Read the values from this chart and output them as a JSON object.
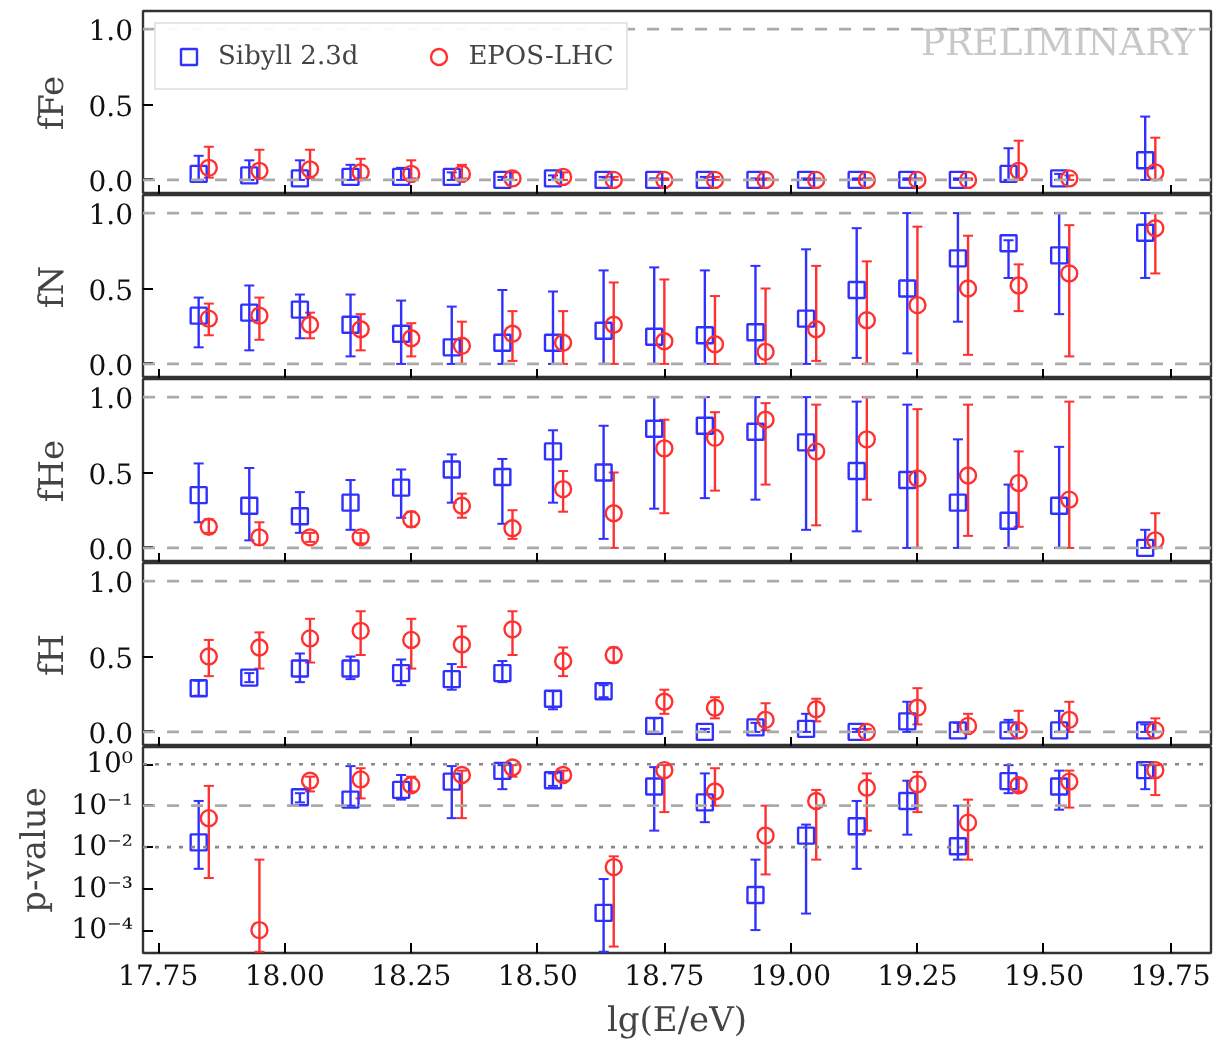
{
  "chart_data": [
    {
      "type": "scatter",
      "ylabel": "fFe",
      "xlim": [
        17.72,
        19.83
      ],
      "xticks": [
        17.75,
        18,
        18.25,
        18.5,
        18.75,
        19,
        19.25,
        19.5,
        19.75
      ],
      "ylim": [
        -0.1,
        1.12
      ],
      "yticks": [
        {
          "value": 0,
          "label": "0.0"
        },
        {
          "value": 0.5,
          "label": "0.5"
        },
        {
          "value": 1,
          "label": "1.0"
        }
      ],
      "tick_labels": "y",
      "legend": "top left",
      "annotations": [
        "PRELIMINARY"
      ],
      "ref_lines": [
        {
          "axis": "y",
          "value": 0,
          "color": "#aaaaaa",
          "line_style": "dashed"
        },
        {
          "axis": "y",
          "value": 1,
          "color": "#aaaaaa",
          "line_style": "dashed"
        }
      ],
      "series": [
        {
          "name": "Sibyll 2.3d",
          "color": "#3030ff",
          "marker": "square",
          "x": [
            17.83,
            17.93,
            18.03,
            18.13,
            18.23,
            18.33,
            18.43,
            18.53,
            18.63,
            18.73,
            18.83,
            18.93,
            19.03,
            19.13,
            19.23,
            19.33,
            19.43,
            19.53,
            19.7
          ],
          "values": [
            0.04,
            0.03,
            0.01,
            0.02,
            0.02,
            0.02,
            0.0,
            0.01,
            0.0,
            0.0,
            0.0,
            0.0,
            0.0,
            0.0,
            0.0,
            0.0,
            0.04,
            0.01,
            0.13
          ],
          "errors": [
            [
              0,
              0.16
            ],
            [
              0,
              0.13
            ],
            [
              0,
              0.13
            ],
            [
              0,
              0.1
            ],
            [
              0,
              0.08
            ],
            [
              0,
              0.05
            ],
            [
              0,
              0.02
            ],
            [
              0,
              0.03
            ],
            [
              0,
              0.02
            ],
            [
              0,
              0.01
            ],
            [
              0,
              0.02
            ],
            [
              0,
              0.01
            ],
            [
              0,
              0.01
            ],
            [
              0,
              0.01
            ],
            [
              0,
              0.01
            ],
            [
              0,
              0.01
            ],
            [
              0,
              0.21
            ],
            [
              0,
              0.04
            ],
            [
              0,
              0.42
            ]
          ]
        },
        {
          "name": "EPOS-LHC",
          "color": "#ff3030",
          "marker": "circle",
          "x": [
            17.85,
            17.95,
            18.05,
            18.15,
            18.25,
            18.35,
            18.45,
            18.55,
            18.65,
            18.75,
            18.85,
            18.95,
            19.05,
            19.15,
            19.25,
            19.35,
            19.45,
            19.55,
            19.72
          ],
          "values": [
            0.08,
            0.06,
            0.07,
            0.05,
            0.04,
            0.04,
            0.01,
            0.02,
            0.0,
            0.0,
            0.0,
            0.0,
            0.0,
            0.0,
            0.0,
            0.0,
            0.06,
            0.01,
            0.05
          ],
          "errors": [
            [
              0.015,
              0.22
            ],
            [
              0.01,
              0.2
            ],
            [
              0.01,
              0.2
            ],
            [
              0.01,
              0.14
            ],
            [
              0.01,
              0.13
            ],
            [
              0.01,
              0.1
            ],
            [
              0,
              0.05
            ],
            [
              0,
              0.05
            ],
            [
              0,
              0.02
            ],
            [
              0,
              0.01
            ],
            [
              0,
              0.02
            ],
            [
              0,
              0.01
            ],
            [
              0,
              0.01
            ],
            [
              0,
              0.01
            ],
            [
              0,
              0.01
            ],
            [
              0,
              0.01
            ],
            [
              0,
              0.26
            ],
            [
              0,
              0.03
            ],
            [
              0,
              0.28
            ]
          ]
        }
      ]
    },
    {
      "type": "scatter",
      "ylabel": "fN",
      "xlim": [
        17.72,
        19.83
      ],
      "xticks": [
        17.75,
        18,
        18.25,
        18.5,
        18.75,
        19,
        19.25,
        19.5,
        19.75
      ],
      "ylim": [
        -0.1,
        1.12
      ],
      "yticks": [
        {
          "value": 0,
          "label": "0.0"
        },
        {
          "value": 0.5,
          "label": "0.5"
        },
        {
          "value": 1,
          "label": "1.0"
        }
      ],
      "tick_labels": "y",
      "ref_lines": [
        {
          "axis": "y",
          "value": 0,
          "color": "#aaaaaa",
          "line_style": "dashed"
        },
        {
          "axis": "y",
          "value": 1,
          "color": "#aaaaaa",
          "line_style": "dashed"
        }
      ],
      "series": [
        {
          "color": "#3030ff",
          "marker": "square",
          "x": [
            17.83,
            17.93,
            18.03,
            18.13,
            18.23,
            18.33,
            18.43,
            18.53,
            18.63,
            18.73,
            18.83,
            18.93,
            19.03,
            19.13,
            19.23,
            19.33,
            19.43,
            19.53,
            19.7
          ],
          "values": [
            0.32,
            0.34,
            0.36,
            0.26,
            0.2,
            0.11,
            0.14,
            0.14,
            0.22,
            0.18,
            0.19,
            0.21,
            0.3,
            0.49,
            0.5,
            0.7,
            0.8,
            0.72,
            0.87
          ],
          "errors": [
            [
              0.11,
              0.44
            ],
            [
              0.09,
              0.52
            ],
            [
              0.17,
              0.46
            ],
            [
              0.05,
              0.46
            ],
            [
              0,
              0.42
            ],
            [
              0,
              0.38
            ],
            [
              0,
              0.49
            ],
            [
              0,
              0.48
            ],
            [
              0,
              0.62
            ],
            [
              0,
              0.64
            ],
            [
              0,
              0.62
            ],
            [
              0,
              0.65
            ],
            [
              0,
              0.76
            ],
            [
              0.04,
              0.9
            ],
            [
              0.07,
              1.0
            ],
            [
              0.28,
              1.0
            ],
            [
              0.57,
              0.82
            ],
            [
              0.33,
              1.0
            ],
            [
              0.57,
              1.0
            ]
          ]
        },
        {
          "color": "#ff3030",
          "marker": "circle",
          "x": [
            17.85,
            17.95,
            18.05,
            18.15,
            18.25,
            18.35,
            18.45,
            18.55,
            18.65,
            18.75,
            18.85,
            18.95,
            19.05,
            19.15,
            19.25,
            19.35,
            19.45,
            19.55,
            19.72
          ],
          "values": [
            0.3,
            0.32,
            0.26,
            0.23,
            0.17,
            0.12,
            0.2,
            0.14,
            0.26,
            0.15,
            0.13,
            0.08,
            0.23,
            0.29,
            0.39,
            0.5,
            0.52,
            0.6,
            0.9
          ],
          "errors": [
            [
              0.19,
              0.4
            ],
            [
              0.16,
              0.44
            ],
            [
              0.17,
              0.34
            ],
            [
              0.09,
              0.33
            ],
            [
              0.05,
              0.27
            ],
            [
              0,
              0.28
            ],
            [
              0.02,
              0.35
            ],
            [
              0,
              0.35
            ],
            [
              0,
              0.54
            ],
            [
              0,
              0.56
            ],
            [
              0,
              0.45
            ],
            [
              0,
              0.5
            ],
            [
              0.02,
              0.65
            ],
            [
              0,
              0.68
            ],
            [
              0,
              0.91
            ],
            [
              0.06,
              0.85
            ],
            [
              0.35,
              0.66
            ],
            [
              0.05,
              0.92
            ],
            [
              0.6,
              1.0
            ]
          ]
        }
      ]
    },
    {
      "type": "scatter",
      "ylabel": "fHe",
      "xlim": [
        17.72,
        19.83
      ],
      "xticks": [
        17.75,
        18,
        18.25,
        18.5,
        18.75,
        19,
        19.25,
        19.5,
        19.75
      ],
      "ylim": [
        -0.1,
        1.12
      ],
      "yticks": [
        {
          "value": 0,
          "label": "0.0"
        },
        {
          "value": 0.5,
          "label": "0.5"
        },
        {
          "value": 1,
          "label": "1.0"
        }
      ],
      "tick_labels": "y",
      "ref_lines": [
        {
          "axis": "y",
          "value": 0,
          "color": "#aaaaaa",
          "line_style": "dashed"
        },
        {
          "axis": "y",
          "value": 1,
          "color": "#aaaaaa",
          "line_style": "dashed"
        }
      ],
      "series": [
        {
          "color": "#3030ff",
          "marker": "square",
          "x": [
            17.83,
            17.93,
            18.03,
            18.13,
            18.23,
            18.33,
            18.43,
            18.53,
            18.63,
            18.73,
            18.83,
            18.93,
            19.03,
            19.13,
            19.23,
            19.33,
            19.43,
            19.53,
            19.7
          ],
          "values": [
            0.35,
            0.28,
            0.21,
            0.3,
            0.4,
            0.52,
            0.47,
            0.64,
            0.5,
            0.79,
            0.81,
            0.77,
            0.7,
            0.51,
            0.45,
            0.3,
            0.18,
            0.28,
            0.0
          ],
          "errors": [
            [
              0.17,
              0.56
            ],
            [
              0.05,
              0.53
            ],
            [
              0.1,
              0.37
            ],
            [
              0.12,
              0.45
            ],
            [
              0.2,
              0.52
            ],
            [
              0.3,
              0.62
            ],
            [
              0.16,
              0.59
            ],
            [
              0.3,
              0.78
            ],
            [
              0.06,
              0.81
            ],
            [
              0.26,
              1.0
            ],
            [
              0.33,
              1.0
            ],
            [
              0.32,
              1.0
            ],
            [
              0.12,
              1.0
            ],
            [
              0.11,
              0.97
            ],
            [
              0,
              0.95
            ],
            [
              0,
              0.72
            ],
            [
              0,
              0.42
            ],
            [
              0,
              0.67
            ],
            [
              0,
              0.12
            ]
          ]
        },
        {
          "color": "#ff3030",
          "marker": "circle",
          "x": [
            17.85,
            17.95,
            18.05,
            18.15,
            18.25,
            18.35,
            18.45,
            18.55,
            18.65,
            18.75,
            18.85,
            18.95,
            19.05,
            19.15,
            19.25,
            19.35,
            19.45,
            19.55,
            19.72
          ],
          "values": [
            0.14,
            0.07,
            0.07,
            0.07,
            0.19,
            0.28,
            0.13,
            0.39,
            0.23,
            0.66,
            0.73,
            0.85,
            0.64,
            0.72,
            0.46,
            0.48,
            0.43,
            0.32,
            0.05
          ],
          "errors": [
            [
              0.1,
              0.19
            ],
            [
              0.02,
              0.17
            ],
            [
              0.04,
              0.1
            ],
            [
              0.03,
              0.1
            ],
            [
              0.14,
              0.24
            ],
            [
              0.2,
              0.36
            ],
            [
              0.06,
              0.25
            ],
            [
              0.24,
              0.51
            ],
            [
              0,
              0.5
            ],
            [
              0.23,
              0.85
            ],
            [
              0.38,
              0.9
            ],
            [
              0.42,
              0.96
            ],
            [
              0.15,
              0.95
            ],
            [
              0.32,
              1.0
            ],
            [
              0,
              0.92
            ],
            [
              0.08,
              0.95
            ],
            [
              0.14,
              0.64
            ],
            [
              0,
              0.97
            ],
            [
              0,
              0.23
            ]
          ]
        }
      ]
    },
    {
      "type": "scatter",
      "ylabel": "fH",
      "xlim": [
        17.72,
        19.83
      ],
      "xticks": [
        17.75,
        18,
        18.25,
        18.5,
        18.75,
        19,
        19.25,
        19.5,
        19.75
      ],
      "ylim": [
        -0.1,
        1.12
      ],
      "yticks": [
        {
          "value": 0,
          "label": "0.0"
        },
        {
          "value": 0.5,
          "label": "0.5"
        },
        {
          "value": 1,
          "label": "1.0"
        }
      ],
      "tick_labels": "y",
      "ref_lines": [
        {
          "axis": "y",
          "value": 0,
          "color": "#aaaaaa",
          "line_style": "dashed"
        },
        {
          "axis": "y",
          "value": 1,
          "color": "#aaaaaa",
          "line_style": "dashed"
        }
      ],
      "series": [
        {
          "color": "#3030ff",
          "marker": "square",
          "x": [
            17.83,
            17.93,
            18.03,
            18.13,
            18.23,
            18.33,
            18.43,
            18.53,
            18.63,
            18.73,
            18.83,
            18.93,
            19.03,
            19.13,
            19.23,
            19.33,
            19.43,
            19.53,
            19.7
          ],
          "values": [
            0.29,
            0.36,
            0.42,
            0.42,
            0.39,
            0.35,
            0.39,
            0.22,
            0.27,
            0.04,
            0.0,
            0.03,
            0.02,
            0.0,
            0.07,
            0.01,
            0.01,
            0.01,
            0.01
          ],
          "errors": [
            [
              0.24,
              0.34
            ],
            [
              0.33,
              0.39
            ],
            [
              0.33,
              0.52
            ],
            [
              0.35,
              0.5
            ],
            [
              0.31,
              0.48
            ],
            [
              0.28,
              0.45
            ],
            [
              0.33,
              0.47
            ],
            [
              0.15,
              0.27
            ],
            [
              0.23,
              0.31
            ],
            [
              0,
              0.09
            ],
            [
              0,
              0.02
            ],
            [
              0,
              0.06
            ],
            [
              0,
              0.12
            ],
            [
              0,
              0.02
            ],
            [
              0,
              0.2
            ],
            [
              0,
              0.06
            ],
            [
              0,
              0.08
            ],
            [
              0,
              0.14
            ],
            [
              0,
              0.05
            ]
          ]
        },
        {
          "color": "#ff3030",
          "marker": "circle",
          "x": [
            17.85,
            17.95,
            18.05,
            18.15,
            18.25,
            18.35,
            18.45,
            18.55,
            18.65,
            18.75,
            18.85,
            18.95,
            19.05,
            19.15,
            19.25,
            19.35,
            19.45,
            19.55,
            19.72
          ],
          "values": [
            0.5,
            0.56,
            0.62,
            0.67,
            0.61,
            0.58,
            0.68,
            0.47,
            0.51,
            0.2,
            0.16,
            0.08,
            0.15,
            0.0,
            0.16,
            0.04,
            0.01,
            0.08,
            0.01
          ],
          "errors": [
            [
              0.37,
              0.61
            ],
            [
              0.42,
              0.66
            ],
            [
              0.46,
              0.75
            ],
            [
              0.51,
              0.8
            ],
            [
              0.42,
              0.75
            ],
            [
              0.43,
              0.7
            ],
            [
              0.51,
              0.8
            ],
            [
              0.37,
              0.56
            ],
            [
              0.46,
              0.56
            ],
            [
              0.12,
              0.28
            ],
            [
              0.09,
              0.23
            ],
            [
              0.01,
              0.19
            ],
            [
              0.07,
              0.22
            ],
            [
              0,
              0.02
            ],
            [
              0.05,
              0.29
            ],
            [
              0,
              0.12
            ],
            [
              0,
              0.14
            ],
            [
              0,
              0.2
            ],
            [
              0,
              0.09
            ]
          ]
        }
      ]
    },
    {
      "type": "scatter",
      "log": true,
      "ylabel": "p-value",
      "xlabel": "lg(E/eV)",
      "xlim": [
        17.72,
        19.83
      ],
      "xticks": [
        17.75,
        {
          "value": 18,
          "label": "18.00"
        },
        18.25,
        {
          "value": 18.5,
          "label": "18.50"
        },
        18.75,
        {
          "value": 19,
          "label": "19.00"
        },
        19.25,
        {
          "value": 19.5,
          "label": "19.50"
        },
        19.75
      ],
      "ylim": [
        2.8e-05,
        2.6
      ],
      "yticks": [
        {
          "value": 0.0001,
          "label": "10⁻⁴"
        },
        {
          "value": 0.001,
          "label": "10⁻³"
        },
        {
          "value": 0.01,
          "label": "10⁻²"
        },
        {
          "value": 0.1,
          "label": "10⁻¹"
        },
        {
          "value": 1,
          "label": "10⁰"
        }
      ],
      "ref_lines": [
        {
          "axis": "y",
          "value": 1,
          "color": "#888888",
          "line_style": "dotted"
        },
        {
          "axis": "y",
          "value": 0.1,
          "color": "#aaaaaa",
          "line_style": "dashed"
        },
        {
          "axis": "y",
          "value": 0.01,
          "color": "#888888",
          "line_style": "dotted"
        }
      ],
      "series": [
        {
          "color": "#3030ff",
          "marker": "square",
          "x": [
            17.83,
            17.93,
            18.03,
            18.13,
            18.23,
            18.33,
            18.43,
            18.53,
            18.63,
            18.73,
            18.83,
            18.93,
            19.03,
            19.13,
            19.23,
            19.33,
            19.43,
            19.53,
            19.7
          ],
          "values": [
            0.013,
            null,
            0.16,
            0.14,
            0.24,
            0.38,
            0.69,
            0.41,
            0.00026,
            0.29,
            0.12,
            0.0007,
            0.019,
            0.032,
            0.13,
            0.0105,
            0.39,
            0.29,
            0.72
          ],
          "errors": [
            [
              0.003,
              0.13
            ],
            null,
            [
              0.12,
              0.2
            ],
            [
              0.1,
              0.9
            ],
            [
              0.14,
              0.55
            ],
            [
              0.05,
              0.9
            ],
            [
              0.25,
              0.95
            ],
            [
              0.3,
              0.6
            ],
            [
              3e-05,
              0.0017
            ],
            [
              0.025,
              0.85
            ],
            [
              0.04,
              0.6
            ],
            [
              0.0001,
              0.005
            ],
            [
              0.00025,
              0.035
            ],
            [
              0.003,
              0.13
            ],
            [
              0.02,
              0.4
            ],
            [
              0.005,
              0.1
            ],
            [
              0.2,
              0.95
            ],
            [
              0.08,
              0.7
            ],
            [
              0.25,
              0.95
            ]
          ]
        },
        {
          "color": "#ff3030",
          "marker": "circle",
          "x": [
            17.85,
            17.95,
            18.05,
            18.15,
            18.25,
            18.35,
            18.45,
            18.55,
            18.65,
            18.75,
            18.85,
            18.95,
            19.05,
            19.15,
            19.25,
            19.35,
            19.45,
            19.55,
            19.72
          ],
          "values": [
            0.05,
            0.0001,
            0.4,
            0.43,
            0.31,
            0.55,
            0.83,
            0.55,
            0.0033,
            0.72,
            0.22,
            0.019,
            0.13,
            0.27,
            0.33,
            0.039,
            0.31,
            0.38,
            0.72
          ],
          "errors": [
            [
              0.0018,
              0.3
            ],
            [
              3e-05,
              0.005
            ],
            [
              0.22,
              0.5
            ],
            [
              0.15,
              0.8
            ],
            [
              0.22,
              0.5
            ],
            [
              0.05,
              0.7
            ],
            [
              0.5,
              0.95
            ],
            [
              0.4,
              0.7
            ],
            [
              4e-05,
              0.006
            ],
            [
              0.07,
              0.95
            ],
            [
              0.1,
              0.8
            ],
            [
              0.0022,
              0.1
            ],
            [
              0.005,
              0.24
            ],
            [
              0.025,
              0.6
            ],
            [
              0.07,
              0.65
            ],
            [
              0.005,
              0.14
            ],
            [
              0.22,
              0.45
            ],
            [
              0.09,
              0.7
            ],
            [
              0.18,
              0.95
            ]
          ]
        }
      ]
    }
  ]
}
